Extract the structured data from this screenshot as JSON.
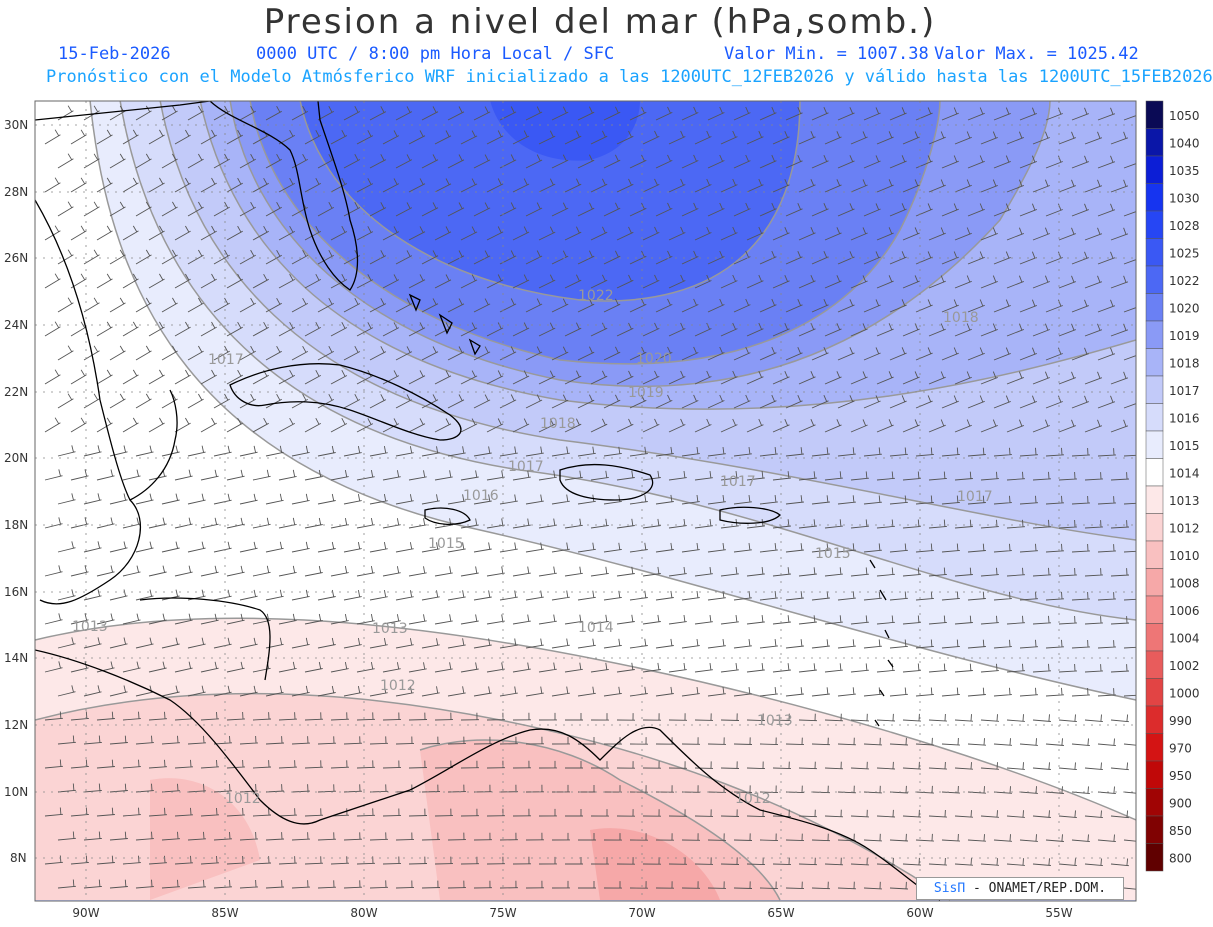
{
  "header": {
    "title": "Presion a nivel del mar (hPa,somb.)",
    "date": "15-Feb-2026",
    "time": "0000 UTC / 8:00 pm Hora Local / SFC",
    "min_label": "Valor Min. = 1007.38",
    "max_label": "Valor Max. = 1025.42",
    "subtitle": "Pronóstico con el Modelo Atmósferico WRF inicializado a las 1200UTC_12FEB2026 y válido hasta las  1200UTC_15FEB2026"
  },
  "map": {
    "lat_labels": [
      "30N",
      "28N",
      "26N",
      "24N",
      "22N",
      "20N",
      "18N",
      "16N",
      "14N",
      "12N",
      "10N",
      "8N"
    ],
    "lon_labels": [
      "90W",
      "85W",
      "80W",
      "75W",
      "70W",
      "65W",
      "60W",
      "55W"
    ],
    "contour_labels": [
      "1022",
      "1020",
      "1019",
      "1018",
      "1018",
      "1017",
      "1017",
      "1017",
      "1017",
      "1016",
      "1015",
      "1015",
      "1014",
      "1013",
      "1013",
      "1013",
      "1012",
      "1012",
      "1012"
    ]
  },
  "colorbar": {
    "levels": [
      "1050",
      "1040",
      "1035",
      "1030",
      "1028",
      "1025",
      "1022",
      "1020",
      "1019",
      "1018",
      "1017",
      "1016",
      "1015",
      "1014",
      "1013",
      "1012",
      "1010",
      "1008",
      "1006",
      "1004",
      "1002",
      "1000",
      "990",
      "970",
      "950",
      "900",
      "850",
      "800"
    ],
    "colors": [
      "#0a0a55",
      "#0a16a8",
      "#0c1ed6",
      "#1634f0",
      "#2646f4",
      "#3a58f4",
      "#4c68f4",
      "#6a80f4",
      "#8a9af6",
      "#a8b4f8",
      "#c2caf9",
      "#d6dcfb",
      "#e8ecfd",
      "#ffffff",
      "#fde8e8",
      "#fbd4d4",
      "#f9c0c0",
      "#f6a8a8",
      "#f39090",
      "#ee7676",
      "#e85c5c",
      "#e24444",
      "#dc2c2c",
      "#d41414",
      "#c00808",
      "#a00404",
      "#800202",
      "#600000"
    ]
  },
  "credit": {
    "brand": "SisΠ",
    "text": " - ONAMET/REP.DOM."
  }
}
